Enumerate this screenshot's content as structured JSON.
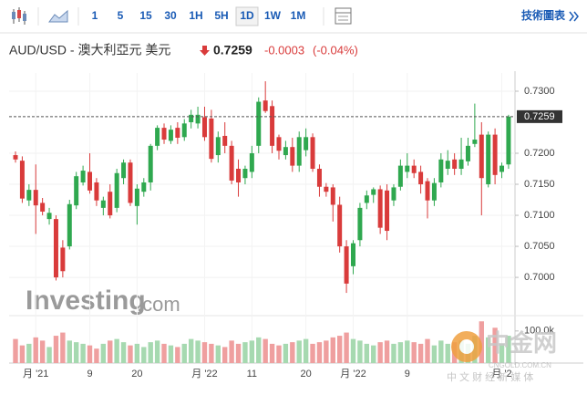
{
  "toolbar": {
    "intervals": [
      "1",
      "5",
      "15",
      "30",
      "1H",
      "5H",
      "1D",
      "1W",
      "1M"
    ],
    "selected": "1D",
    "link": "技術圖表"
  },
  "chart_data": {
    "type": "candlestick",
    "title": "AUD/USD - 澳大利亞元 美元",
    "price": "0.7259",
    "change": "-0.0003",
    "change_pct": "(-0.04%)",
    "current_price": {
      "value": 0.7259,
      "label": "0.7259"
    },
    "up_color": "#2fa84f",
    "down_color": "#d93b3b",
    "up_volume_color": "#a6d9b0",
    "down_volume_color": "#ef9f9f",
    "ylim": [
      0.6981,
      0.7322
    ],
    "yticks": [
      {
        "value": 0.73,
        "label": "0.7300"
      },
      {
        "value": 0.72,
        "label": "0.7200"
      },
      {
        "value": 0.715,
        "label": "0.7150"
      },
      {
        "value": 0.71,
        "label": "0.7100"
      },
      {
        "value": 0.705,
        "label": "0.7050"
      },
      {
        "value": 0.7,
        "label": "0.7000"
      }
    ],
    "volume_lim": [
      0,
      125000
    ],
    "volume_ticks": [
      {
        "value": 100000,
        "label": "100.0k"
      }
    ],
    "categories": [
      null,
      null,
      null,
      "月 '21",
      null,
      null,
      null,
      null,
      null,
      null,
      null,
      "9",
      null,
      null,
      null,
      null,
      null,
      null,
      "20",
      null,
      null,
      null,
      null,
      null,
      null,
      null,
      null,
      null,
      "月 '22",
      null,
      null,
      null,
      null,
      null,
      null,
      "11",
      null,
      null,
      null,
      null,
      null,
      null,
      null,
      "20",
      null,
      null,
      null,
      null,
      null,
      null,
      "月 '22",
      null,
      null,
      null,
      null,
      null,
      null,
      null,
      "9",
      null,
      null,
      null,
      null,
      null,
      null,
      null,
      null,
      null,
      null,
      null,
      null,
      null,
      "月 '2",
      null
    ],
    "open": [
      0.7197,
      0.7188,
      0.7124,
      0.7141,
      0.712,
      0.7094,
      0.7094,
      0.7048,
      0.705,
      0.7116,
      0.7153,
      0.717,
      0.7153,
      0.7112,
      0.7138,
      0.7112,
      0.716,
      0.7185,
      0.7115,
      0.7138,
      0.7153,
      0.7212,
      0.7241,
      0.722,
      0.7241,
      0.7226,
      0.725,
      0.7248,
      0.7258,
      0.7256,
      0.7197,
      0.7228,
      0.7212,
      0.7175,
      0.716,
      0.717,
      0.7212,
      0.7285,
      0.7276,
      0.7226,
      0.7197,
      0.721,
      0.718,
      0.7205,
      0.7226,
      0.7175,
      0.7146,
      0.7145,
      0.7117,
      0.705,
      0.7018,
      0.706,
      0.712,
      0.7133,
      0.7142,
      0.714,
      0.7124,
      0.7146,
      0.717,
      0.718,
      0.717,
      0.7155,
      0.7124,
      0.7153,
      0.7175,
      0.719,
      0.7175,
      0.7187,
      0.7215,
      0.723,
      0.715,
      0.723,
      0.717,
      0.7182
    ],
    "high": [
      0.7203,
      0.7195,
      0.715,
      0.7182,
      0.7128,
      0.7112,
      0.71,
      0.706,
      0.7125,
      0.717,
      0.718,
      0.72,
      0.716,
      0.713,
      0.715,
      0.7175,
      0.719,
      0.719,
      0.715,
      0.716,
      0.7215,
      0.7245,
      0.7248,
      0.7245,
      0.725,
      0.7255,
      0.727,
      0.7275,
      0.7275,
      0.727,
      0.7235,
      0.725,
      0.722,
      0.719,
      0.718,
      0.7212,
      0.729,
      0.7316,
      0.7285,
      0.723,
      0.722,
      0.7225,
      0.7235,
      0.724,
      0.7232,
      0.7182,
      0.7152,
      0.715,
      0.713,
      0.706,
      0.706,
      0.712,
      0.714,
      0.7145,
      0.7148,
      0.715,
      0.715,
      0.719,
      0.72,
      0.719,
      0.718,
      0.716,
      0.716,
      0.72,
      0.7205,
      0.72,
      0.7225,
      0.7225,
      0.728,
      0.725,
      0.7235,
      0.724,
      0.7185,
      0.7262
    ],
    "low": [
      0.7185,
      0.712,
      0.7115,
      0.707,
      0.71,
      0.7085,
      0.6995,
      0.7,
      0.7045,
      0.711,
      0.7148,
      0.7135,
      0.7115,
      0.71,
      0.7095,
      0.7105,
      0.715,
      0.7115,
      0.7085,
      0.713,
      0.714,
      0.7205,
      0.7215,
      0.7215,
      0.7215,
      0.722,
      0.724,
      0.724,
      0.722,
      0.7185,
      0.7185,
      0.72,
      0.715,
      0.713,
      0.715,
      0.716,
      0.72,
      0.7265,
      0.72,
      0.719,
      0.719,
      0.717,
      0.717,
      0.7195,
      0.717,
      0.713,
      0.713,
      0.709,
      0.704,
      0.6975,
      0.7005,
      0.705,
      0.711,
      0.712,
      0.707,
      0.706,
      0.7115,
      0.714,
      0.716,
      0.716,
      0.7135,
      0.7095,
      0.7115,
      0.7145,
      0.7165,
      0.7165,
      0.7165,
      0.718,
      0.721,
      0.71,
      0.7145,
      0.715,
      0.716,
      0.7175
    ],
    "close": [
      0.719,
      0.7127,
      0.7141,
      0.7116,
      0.7106,
      0.7104,
      0.7,
      0.701,
      0.7118,
      0.7163,
      0.7172,
      0.714,
      0.7124,
      0.7124,
      0.71,
      0.7168,
      0.7185,
      0.712,
      0.7143,
      0.7153,
      0.7212,
      0.7241,
      0.7222,
      0.7238,
      0.7225,
      0.7248,
      0.7262,
      0.7262,
      0.7226,
      0.7191,
      0.7226,
      0.7212,
      0.7156,
      0.7153,
      0.7175,
      0.72,
      0.7283,
      0.7268,
      0.7212,
      0.7204,
      0.721,
      0.718,
      0.7226,
      0.7226,
      0.7175,
      0.7146,
      0.7138,
      0.7117,
      0.705,
      0.699,
      0.7055,
      0.7112,
      0.7132,
      0.7142,
      0.708,
      0.7075,
      0.7145,
      0.718,
      0.718,
      0.7168,
      0.715,
      0.7124,
      0.7152,
      0.719,
      0.7188,
      0.7175,
      0.719,
      0.7212,
      0.7222,
      0.716,
      0.723,
      0.7165,
      0.718,
      0.7259
    ],
    "volume": [
      75000,
      55000,
      60000,
      80000,
      70000,
      50000,
      85000,
      95000,
      70000,
      65000,
      60000,
      55000,
      45000,
      60000,
      70000,
      75000,
      65000,
      55000,
      60000,
      50000,
      65000,
      70000,
      60000,
      55000,
      50000,
      60000,
      75000,
      70000,
      65000,
      60000,
      55000,
      50000,
      70000,
      60000,
      65000,
      70000,
      80000,
      75000,
      60000,
      55000,
      60000,
      65000,
      70000,
      75000,
      60000,
      65000,
      70000,
      80000,
      85000,
      95000,
      75000,
      70000,
      60000,
      55000,
      65000,
      70000,
      60000,
      65000,
      70000,
      65000,
      60000,
      75000,
      55000,
      70000,
      60000,
      65000,
      70000,
      60000,
      85000,
      130000,
      80000,
      110000,
      60000,
      85000
    ]
  },
  "watermark": {
    "brand": "Investing",
    "suffix": ".com",
    "logo": "中金网",
    "site": "CNGOLD.COM.CN",
    "slogan": "中 文 财 经 新 媒 体"
  }
}
